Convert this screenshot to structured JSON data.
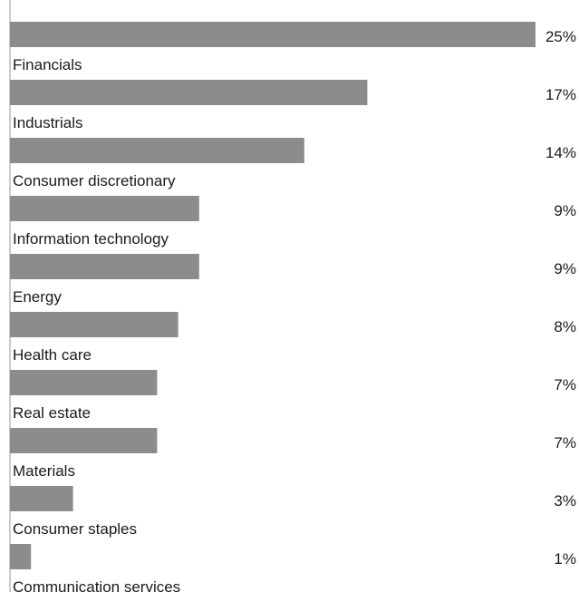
{
  "chart_data": {
    "type": "bar",
    "orientation": "horizontal",
    "categories": [
      "Financials",
      "Industrials",
      "Consumer discretionary",
      "Information technology",
      "Energy",
      "Health care",
      "Real estate",
      "Materials",
      "Consumer staples",
      "Communication services"
    ],
    "values": [
      25,
      17,
      14,
      9,
      9,
      8,
      7,
      7,
      3,
      1
    ],
    "value_labels": [
      "25%",
      "17%",
      "14%",
      "9%",
      "9%",
      "8%",
      "7%",
      "7%",
      "3%",
      "1%"
    ],
    "unit": "%",
    "xlim": [
      0,
      25
    ],
    "grid": false,
    "legend": "none",
    "colors": {
      "bar": "#8c8c8c",
      "axis": "#9a9a9a",
      "text": "#1a1a1a"
    }
  }
}
